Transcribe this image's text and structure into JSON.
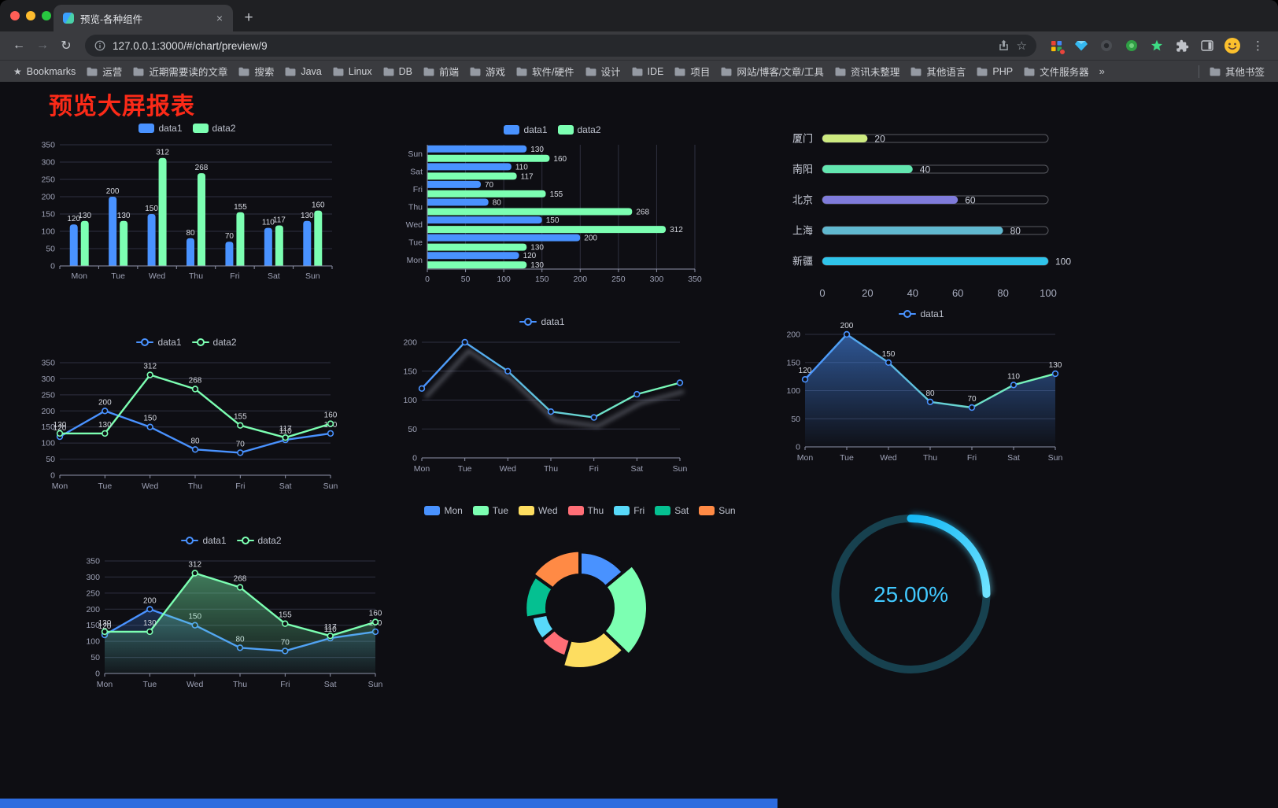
{
  "browser": {
    "tab_title": "预览-各种组件",
    "url": "127.0.0.1:3000/#/chart/preview/9",
    "icons": {
      "close": "×",
      "new_tab": "+",
      "back": "←",
      "forward": "→",
      "reload": "↻",
      "menu": "⋮",
      "overflow": "»",
      "bookmarks_star": "★",
      "omnibox_star": "☆"
    }
  },
  "bookmarks_bar": {
    "first_label": "Bookmarks",
    "other_label": "其他书签"
  },
  "bookmarks": [
    "运营",
    "近期需要读的文章",
    "搜索",
    "Java",
    "Linux",
    "DB",
    "前端",
    "游戏",
    "软件/硬件",
    "设计",
    "IDE",
    "项目",
    "网站/博客/文章/工具",
    "资讯未整理",
    "其他语言",
    "PHP",
    "文件服务器"
  ],
  "page": {
    "title": "预览大屏报表"
  },
  "palette": {
    "data1": "#4992ff",
    "data2": "#7cffb2"
  },
  "chart_data": [
    {
      "id": "bar-grouped",
      "type": "bar",
      "categories": [
        "Mon",
        "Tue",
        "Wed",
        "Thu",
        "Fri",
        "Sat",
        "Sun"
      ],
      "series": [
        {
          "name": "data1",
          "color": "#4992ff",
          "values": [
            120,
            200,
            150,
            80,
            70,
            110,
            130
          ]
        },
        {
          "name": "data2",
          "color": "#7cffb2",
          "values": [
            130,
            130,
            312,
            268,
            155,
            117,
            160
          ]
        }
      ],
      "ymax": 350,
      "ystep": 50
    },
    {
      "id": "bar-horizontal",
      "type": "hbar",
      "categories": [
        "Mon",
        "Tue",
        "Wed",
        "Thu",
        "Fri",
        "Sat",
        "Sun"
      ],
      "series": [
        {
          "name": "data1",
          "color": "#4992ff",
          "values": [
            120,
            200,
            150,
            80,
            70,
            110,
            130
          ]
        },
        {
          "name": "data2",
          "color": "#7cffb2",
          "values": [
            130,
            130,
            312,
            268,
            155,
            117,
            160
          ]
        }
      ],
      "xmax": 350,
      "xstep": 50
    },
    {
      "id": "capsule-cities",
      "type": "capsule",
      "max": 100,
      "ticks": [
        0,
        20,
        40,
        60,
        80,
        100
      ],
      "rows": [
        {
          "label": "厦门",
          "value": 20,
          "color": "#cdea80"
        },
        {
          "label": "南阳",
          "value": 40,
          "color": "#63e6b0"
        },
        {
          "label": "北京",
          "value": 60,
          "color": "#7f7bdb"
        },
        {
          "label": "上海",
          "value": 80,
          "color": "#60b8cf"
        },
        {
          "label": "新疆",
          "value": 100,
          "color": "#2fc4ea"
        }
      ]
    },
    {
      "id": "line-two",
      "type": "line",
      "ymax": 350,
      "ystep": 50,
      "categories": [
        "Mon",
        "Tue",
        "Wed",
        "Thu",
        "Fri",
        "Sat",
        "Sun"
      ],
      "series": [
        {
          "name": "data1",
          "color": "#4992ff",
          "markers": true,
          "labels": true,
          "values": [
            120,
            200,
            150,
            80,
            70,
            110,
            130
          ]
        },
        {
          "name": "data2",
          "color": "#7cffb2",
          "markers": true,
          "labels": true,
          "values": [
            130,
            130,
            312,
            268,
            155,
            117,
            160
          ]
        }
      ]
    },
    {
      "id": "line-gradient-shadow",
      "type": "line",
      "ymax": 200,
      "ystep": 50,
      "categories": [
        "Mon",
        "Tue",
        "Wed",
        "Thu",
        "Fri",
        "Sat",
        "Sun"
      ],
      "series": [
        {
          "name": "data1",
          "color": "#4992ff",
          "gradient": [
            "#4992ff",
            "#7cffb2"
          ],
          "shadow": true,
          "markers": true,
          "values": [
            120,
            200,
            150,
            80,
            70,
            110,
            130
          ]
        }
      ]
    },
    {
      "id": "line-area",
      "type": "line",
      "ymax": 200,
      "ystep": 50,
      "categories": [
        "Mon",
        "Tue",
        "Wed",
        "Thu",
        "Fri",
        "Sat",
        "Sun"
      ],
      "series": [
        {
          "name": "data1",
          "color": "#4992ff",
          "gradient": [
            "#4992ff",
            "#7cffb2"
          ],
          "area": [
            "rgba(73,146,255,0.55)",
            "rgba(73,146,255,0.02)"
          ],
          "markers": true,
          "labels": true,
          "values": [
            120,
            200,
            150,
            80,
            70,
            110,
            130
          ]
        }
      ]
    },
    {
      "id": "line-area-two",
      "type": "line",
      "ymax": 350,
      "ystep": 50,
      "categories": [
        "Mon",
        "Tue",
        "Wed",
        "Thu",
        "Fri",
        "Sat",
        "Sun"
      ],
      "series": [
        {
          "name": "data1",
          "color": "#4992ff",
          "markers": true,
          "labels": true,
          "area": [
            "rgba(73,146,255,0.25)",
            "rgba(73,146,255,0.02)"
          ],
          "values": [
            120,
            200,
            150,
            80,
            70,
            110,
            130
          ]
        },
        {
          "name": "data2",
          "color": "#7cffb2",
          "markers": true,
          "labels": true,
          "area": [
            "rgba(124,255,178,0.45)",
            "rgba(124,255,178,0.03)"
          ],
          "values": [
            130,
            130,
            312,
            268,
            155,
            117,
            160
          ]
        }
      ]
    },
    {
      "id": "rose-pie",
      "type": "rose",
      "items": [
        {
          "name": "Mon",
          "value": 120,
          "color": "#4992ff"
        },
        {
          "name": "Tue",
          "value": 200,
          "color": "#7cffb2"
        },
        {
          "name": "Wed",
          "value": 150,
          "color": "#fddd60"
        },
        {
          "name": "Thu",
          "value": 80,
          "color": "#ff6e76"
        },
        {
          "name": "Fri",
          "value": 70,
          "color": "#58d9f9"
        },
        {
          "name": "Sat",
          "value": 110,
          "color": "#05c091"
        },
        {
          "name": "Sun",
          "value": 130,
          "color": "#ff8a45"
        }
      ]
    },
    {
      "id": "gauge-percent",
      "type": "gauge",
      "value": 25,
      "label": "25.00%",
      "ring_color": "#17414f",
      "progress_colors": [
        "#17b8f5",
        "#6fe3ff"
      ],
      "text_color": "#41c9ff"
    }
  ]
}
